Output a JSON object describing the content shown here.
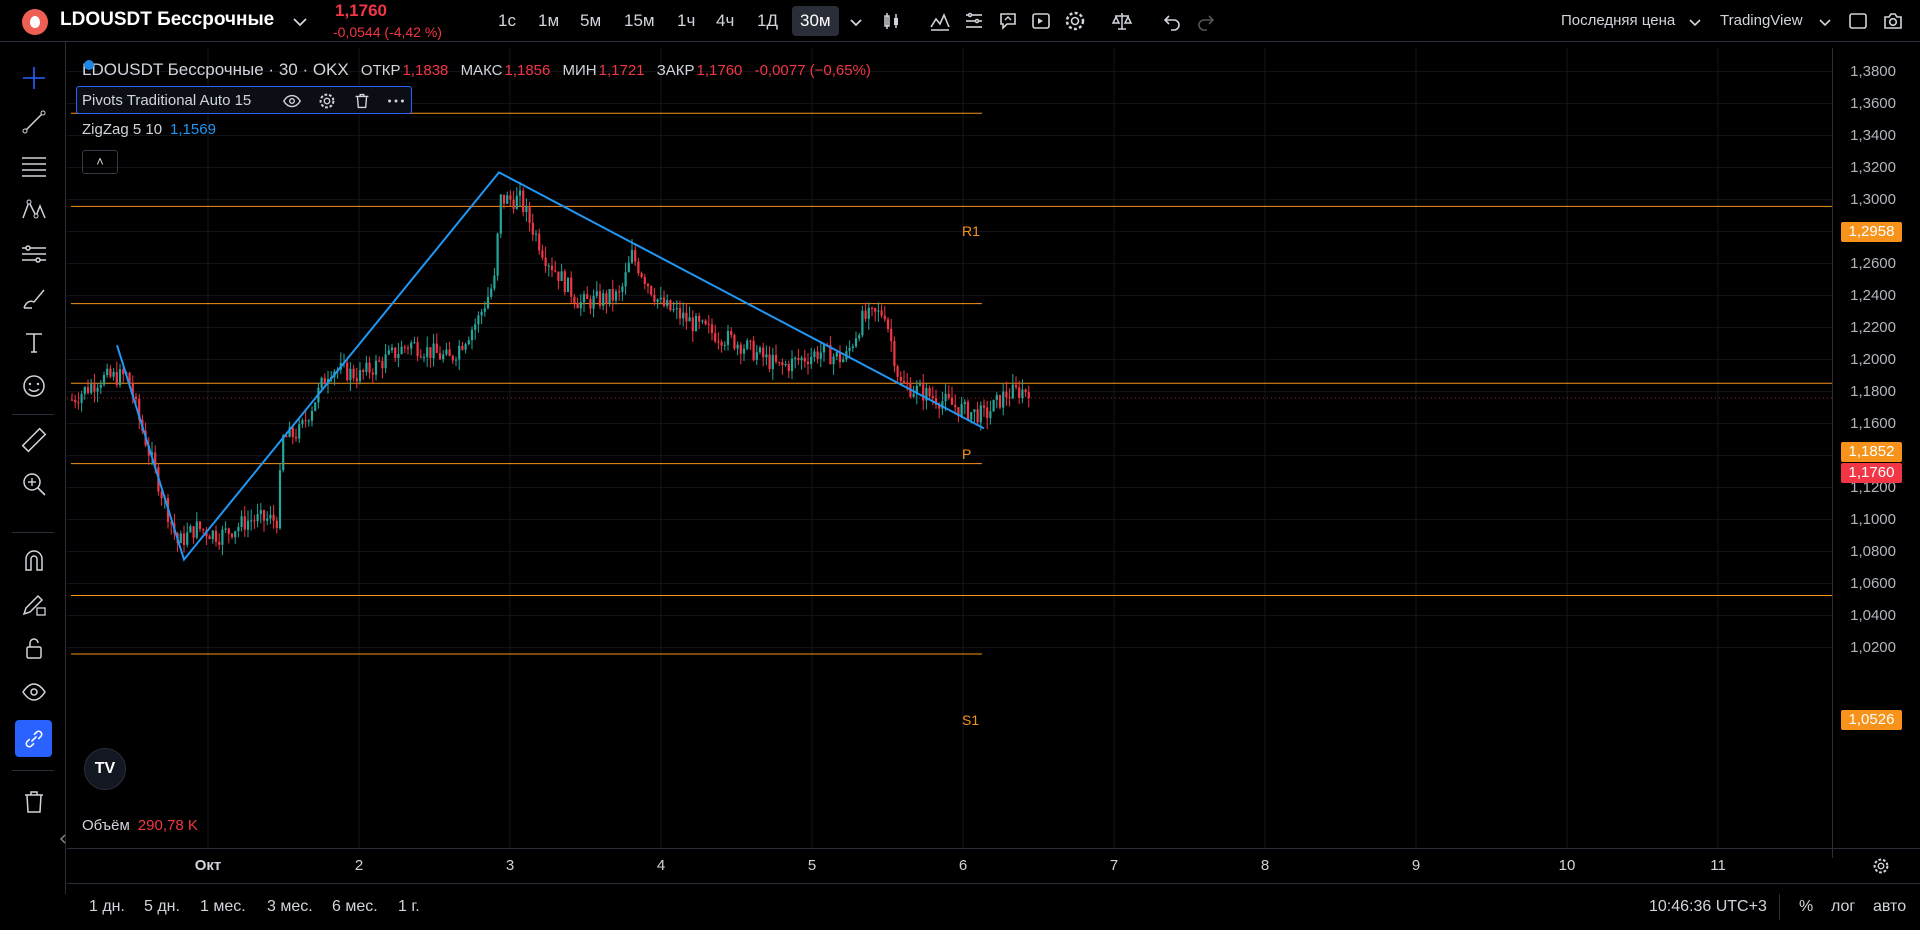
{
  "header": {
    "ticker": "LDOUSDT Бессрочные",
    "last_price": "1,1760",
    "change": "-0,0544 (-4,42 %)",
    "intervals": [
      "1с",
      "1м",
      "5м",
      "15м",
      "1ч",
      "4ч",
      "1Д",
      "30м"
    ],
    "price_source": "Последняя цена",
    "brand": "TradingView"
  },
  "legend": {
    "symbol": "LDOUSDT Бессрочные · 30 · OKX",
    "open_label": "ОТКР",
    "open": "1,1838",
    "high_label": "МАКС",
    "high": "1,1856",
    "low_label": "МИН",
    "low": "1,1721",
    "close_label": "ЗАКР",
    "close": "1,1760",
    "change": "-0,0077 (−0,65%)"
  },
  "indicators": {
    "pivots": "Pivots Traditional Auto 15",
    "zigzag_label": "ZigZag 5 10",
    "zigzag_value": "1,1569",
    "volume_label": "Объём",
    "volume_value": "290,78 K",
    "collapse": "˄"
  },
  "pivots": {
    "r1_label": "R1",
    "p_label": "P",
    "s1_label": "S1",
    "r1_value": "1,2958",
    "p_value": "1,1852",
    "s1_value": "1,0526",
    "current_value": "1,1760"
  },
  "price_axis": [
    "1,3800",
    "1,3600",
    "1,3400",
    "1,3200",
    "1,3000",
    "1,2800",
    "1,2600",
    "1,2400",
    "1,2200",
    "1,2000",
    "1,1800",
    "1,1600",
    "1,1400",
    "1,1200",
    "1,1000",
    "1,0800",
    "1,0600",
    "1,0400",
    "1,0200"
  ],
  "time_axis": [
    "Окт",
    "2",
    "3",
    "4",
    "5",
    "6",
    "7",
    "8",
    "9",
    "10",
    "11"
  ],
  "bottom": {
    "ranges": [
      "1 дн.",
      "5 дн.",
      "1 мес.",
      "3 мес.",
      "6 мес.",
      "1 г."
    ],
    "clock": "10:46:36 UTC+3",
    "percent": "%",
    "log": "лог",
    "auto": "авто"
  },
  "colors": {
    "up": "#26a69a",
    "down": "#f23645",
    "zigzag": "#2196f3",
    "pivot": "#f7931a",
    "active_tool": "#2962ff"
  },
  "chart_data": {
    "type": "candlestick",
    "ylim": [
      1.01,
      1.39
    ],
    "zigzag": [
      {
        "x": "Окт −0.6",
        "y": 1.209
      },
      {
        "x": "Окт −0.15",
        "y": 1.075
      },
      {
        "x": "3 −0.08",
        "y": 1.317
      },
      {
        "x": "6 +0.12",
        "y": 1.157
      }
    ],
    "pivot_levels": [
      {
        "name": "",
        "y": 1.354
      },
      {
        "name": "R1",
        "y": 1.2958
      },
      {
        "name": "",
        "y": 1.235
      },
      {
        "name": "P",
        "y": 1.1852
      },
      {
        "name": "",
        "y": 1.135
      },
      {
        "name": "S1",
        "y": 1.0526
      },
      {
        "name": "",
        "y": 1.016
      }
    ]
  }
}
